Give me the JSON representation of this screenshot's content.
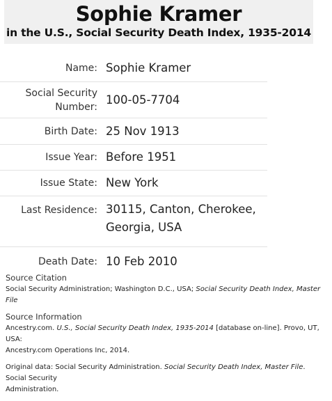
{
  "header": {
    "name": "Sophie Kramer",
    "collection": "in the U.S., Social Security Death Index, 1935-2014"
  },
  "facts": [
    {
      "label": "Name:",
      "value": "Sophie Kramer"
    },
    {
      "label_line1": "Social Security",
      "label_line2": "Number:",
      "value": "100-05-7704"
    },
    {
      "label": "Birth Date:",
      "value": "25 Nov 1913"
    },
    {
      "label": "Issue Year:",
      "value": "Before 1951"
    },
    {
      "label": "Issue State:",
      "value": "New York"
    },
    {
      "label": "Last Residence:",
      "value_line1": "30115, Canton, Cherokee,",
      "value_line2": "Georgia, USA"
    },
    {
      "label": "Death Date:",
      "value": "10 Feb 2010"
    }
  ],
  "source_citation": {
    "heading": "Source Citation",
    "text_plain": "Social Security Administration; Washington D.C., USA;",
    "text_italic": "Social Security Death Index, Master File"
  },
  "source_information": {
    "heading": "Source Information",
    "line1_plain_a": "Ancestry.com.",
    "line1_italic": "U.S., Social Security Death Index, 1935-2014",
    "line1_plain_b": "[database on-line]. Provo, UT, USA:",
    "line2": "Ancestry.com Operations Inc, 2014."
  },
  "original_data": {
    "plain_a": "Original data: Social Security Administration.",
    "italic": "Social Security Death Index, Master File",
    "plain_b": ". Social Security",
    "line2": "Administration."
  }
}
